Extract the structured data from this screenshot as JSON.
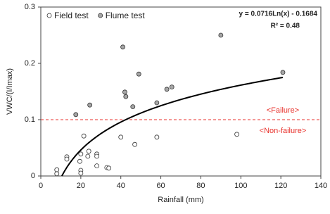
{
  "chart_data": {
    "type": "scatter",
    "x_label": "Rainfall (mm)",
    "y_label": "VWC/(I/Imax)",
    "xlim": [
      0,
      140
    ],
    "xticks": [
      0,
      20,
      40,
      60,
      80,
      100,
      120,
      140
    ],
    "ylim": [
      0,
      0.3
    ],
    "yticks": [
      0,
      0.1,
      0.2,
      0.3
    ],
    "legend": "top-left",
    "series": [
      {
        "name": "Field test",
        "color": "#ffffff",
        "x": [
          8,
          8,
          13,
          13,
          20,
          20,
          19.5,
          20,
          21.5,
          24,
          23.5,
          28,
          28,
          28,
          33,
          34,
          40,
          47,
          58,
          98
        ],
        "values": [
          0.011,
          0.004,
          0.034,
          0.03,
          0.01,
          0.005,
          0.026,
          0.039,
          0.071,
          0.044,
          0.035,
          0.039,
          0.035,
          0.018,
          0.015,
          0.014,
          0.069,
          0.056,
          0.069,
          0.074
        ]
      },
      {
        "name": "Flume test",
        "color": "#a6a6a6",
        "x": [
          17.5,
          24.5,
          41,
          42,
          42.5,
          46,
          49,
          58,
          63,
          65.5,
          90,
          121
        ],
        "values": [
          0.109,
          0.126,
          0.229,
          0.149,
          0.141,
          0.123,
          0.181,
          0.13,
          0.154,
          0.158,
          0.25,
          0.184
        ]
      }
    ],
    "trendline": {
      "label": "y = 0.0716Ln(x) - 0.1684",
      "r2_label": "R² = 0.48",
      "coef": 0.0716,
      "intercept": -0.1684,
      "x_range": [
        10.5,
        121
      ]
    },
    "threshold": {
      "value": 0.1,
      "color": "#e8322c",
      "upper_label": "<Failure>",
      "lower_label": "<Non-failure>"
    }
  }
}
